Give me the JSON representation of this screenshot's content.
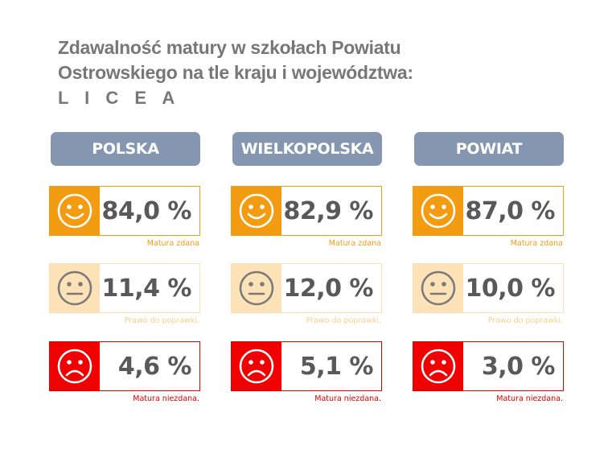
{
  "title": {
    "line1": "Zdawalność matury w szkołach Powiatu",
    "line2": "Ostrowskiego na tle kraju i województwa:",
    "line3": "L I C E A"
  },
  "colors": {
    "header": "#8496b0",
    "pass": "#f39c12",
    "retry": "#fde2b8",
    "fail": "#f00000",
    "value_text": "#595959",
    "title_text": "#777777"
  },
  "columns": [
    {
      "header": "POLSKA",
      "pass": {
        "value": "84,0 %",
        "note": "Matura zdana",
        "icon": "smiley-happy-icon"
      },
      "retry": {
        "value": "11,4 %",
        "note": "Prawo do poprawki.",
        "icon": "smiley-neutral-icon"
      },
      "fail": {
        "value": "4,6 %",
        "note": "Matura niezdana.",
        "icon": "smiley-sad-icon"
      }
    },
    {
      "header": "WIELKOPOLSKA",
      "pass": {
        "value": "82,9 %",
        "note": "Matura zdana",
        "icon": "smiley-happy-icon"
      },
      "retry": {
        "value": "12,0 %",
        "note": "Prawo do poprawki.",
        "icon": "smiley-neutral-icon"
      },
      "fail": {
        "value": "5,1 %",
        "note": "Matura niezdana.",
        "icon": "smiley-sad-icon"
      }
    },
    {
      "header": "POWIAT",
      "pass": {
        "value": "87,0 %",
        "note": "Matura zdana",
        "icon": "smiley-happy-icon"
      },
      "retry": {
        "value": "10,0 %",
        "note": "Prawo do poprawki.",
        "icon": "smiley-neutral-icon"
      },
      "fail": {
        "value": "3,0 %",
        "note": "Matura niezdana.",
        "icon": "smiley-sad-icon"
      }
    }
  ]
}
